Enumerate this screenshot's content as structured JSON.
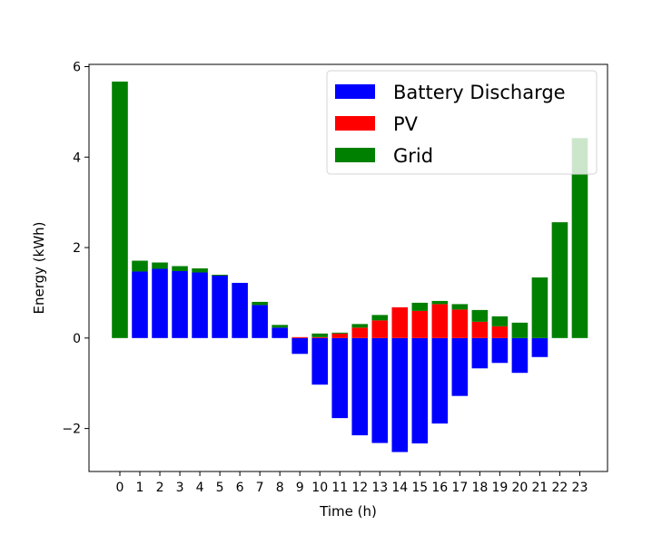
{
  "chart_data": {
    "type": "bar",
    "stacked": true,
    "title": "",
    "xlabel": "Time (h)",
    "ylabel": "Energy (kWh)",
    "ylim": [
      -2.95,
      6.05
    ],
    "yticks": [
      -2,
      0,
      2,
      4,
      6
    ],
    "ytick_labels": [
      "−2",
      "0",
      "2",
      "4",
      "6"
    ],
    "categories": [
      "0",
      "1",
      "2",
      "3",
      "4",
      "5",
      "6",
      "7",
      "8",
      "9",
      "10",
      "11",
      "12",
      "13",
      "14",
      "15",
      "16",
      "17",
      "18",
      "19",
      "20",
      "21",
      "22",
      "23"
    ],
    "grid": false,
    "legend_position": "top-right",
    "series": [
      {
        "name": "Battery Discharge",
        "color": "#0000ff",
        "values": [
          0,
          1.47,
          1.53,
          1.48,
          1.45,
          1.38,
          1.22,
          0.73,
          0.23,
          -0.35,
          -1.03,
          -1.77,
          -2.15,
          -2.32,
          -2.52,
          -2.33,
          -1.89,
          -1.28,
          -0.67,
          -0.55,
          -0.77,
          -0.42,
          0,
          0
        ]
      },
      {
        "name": "PV",
        "color": "#ff0000",
        "values": [
          0,
          0,
          0,
          0,
          0,
          0,
          0,
          0,
          0,
          0.02,
          0.02,
          0.1,
          0.23,
          0.39,
          0.68,
          0.6,
          0.75,
          0.63,
          0.36,
          0.26,
          0,
          0,
          0,
          0
        ]
      },
      {
        "name": "Grid",
        "color": "#008000",
        "values": [
          5.67,
          0.24,
          0.14,
          0.11,
          0.09,
          0.02,
          0,
          0.07,
          0.06,
          0,
          0.08,
          0.02,
          0.08,
          0.12,
          0,
          0.18,
          0.07,
          0.12,
          0.26,
          0.22,
          0.34,
          1.34,
          2.56,
          4.42
        ]
      }
    ]
  }
}
